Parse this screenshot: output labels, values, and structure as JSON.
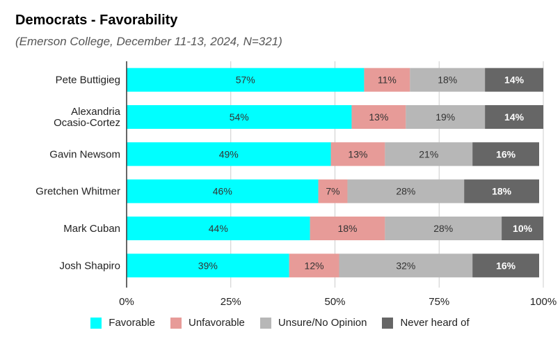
{
  "chart_data": {
    "type": "bar",
    "orientation": "horizontal",
    "stacked": true,
    "title": "Democrats - Favorability",
    "subtitle": "(Emerson College, December 11-13, 2024, N=321)",
    "categories": [
      "Pete Buttigieg",
      "Alexandria Ocasio-Cortez",
      "Gavin Newsom",
      "Gretchen Whitmer",
      "Mark Cuban",
      "Josh Shapiro"
    ],
    "category_lines": [
      [
        "Pete Buttigieg"
      ],
      [
        "Alexandria",
        "Ocasio-Cortez"
      ],
      [
        "Gavin Newsom"
      ],
      [
        "Gretchen Whitmer"
      ],
      [
        "Mark Cuban"
      ],
      [
        "Josh Shapiro"
      ]
    ],
    "series": [
      {
        "name": "Favorable",
        "color": "#00ffff",
        "label_color": "#333333",
        "values": [
          57,
          54,
          49,
          46,
          44,
          39
        ]
      },
      {
        "name": "Unfavorable",
        "color": "#e79b98",
        "label_color": "#333333",
        "values": [
          11,
          13,
          13,
          7,
          18,
          12
        ]
      },
      {
        "name": "Unsure/No Opinion",
        "color": "#b7b7b7",
        "label_color": "#333333",
        "values": [
          18,
          19,
          21,
          28,
          28,
          32
        ]
      },
      {
        "name": "Never heard of",
        "color": "#666666",
        "label_color": "#ffffff",
        "values": [
          14,
          14,
          16,
          18,
          10,
          16
        ]
      }
    ],
    "xlim": [
      0,
      100
    ],
    "x_ticks": [
      0,
      25,
      50,
      75,
      100
    ],
    "x_tick_labels": [
      "0%",
      "25%",
      "50%",
      "75%",
      "100%"
    ],
    "value_suffix": "%",
    "grid": true,
    "legend_position": "bottom"
  }
}
